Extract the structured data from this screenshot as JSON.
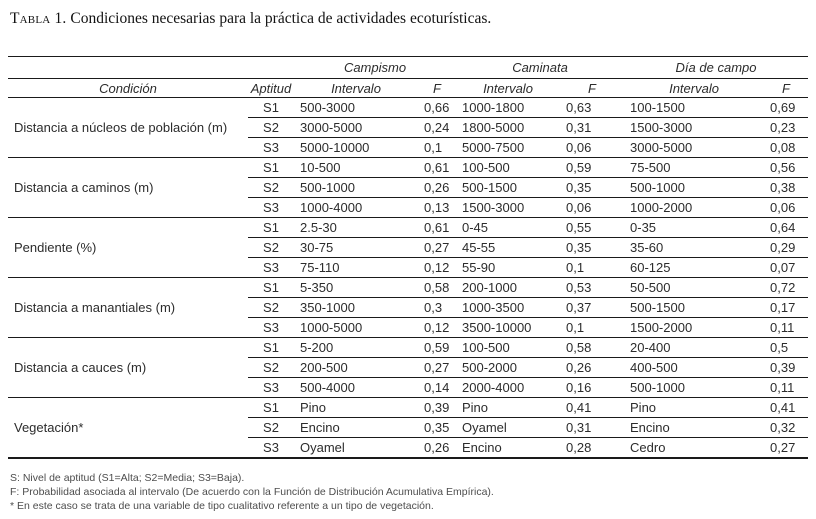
{
  "title": {
    "label": "Tabla 1.",
    "text": "Condiciones necesarias para la práctica de actividades ecoturísticas."
  },
  "table": {
    "activity_headers": [
      "Campismo",
      "Caminata",
      "Día de campo"
    ],
    "column_headers": {
      "condition": "Condición",
      "aptitude": "Aptitud",
      "interval": "Intervalo",
      "f": "F"
    },
    "conditions": [
      {
        "name": "Distancia a núcleos de población (m)",
        "rows": [
          {
            "aptitud": "S1",
            "campismo": {
              "intervalo": "500-3000",
              "f": "0,66"
            },
            "caminata": {
              "intervalo": "1000-1800",
              "f": "0,63"
            },
            "dia_de_campo": {
              "intervalo": "100-1500",
              "f": "0,69"
            }
          },
          {
            "aptitud": "S2",
            "campismo": {
              "intervalo": "3000-5000",
              "f": "0,24"
            },
            "caminata": {
              "intervalo": "1800-5000",
              "f": "0,31"
            },
            "dia_de_campo": {
              "intervalo": "1500-3000",
              "f": "0,23"
            }
          },
          {
            "aptitud": "S3",
            "campismo": {
              "intervalo": "5000-10000",
              "f": "0,1"
            },
            "caminata": {
              "intervalo": "5000-7500",
              "f": "0,06"
            },
            "dia_de_campo": {
              "intervalo": "3000-5000",
              "f": "0,08"
            }
          }
        ]
      },
      {
        "name": "Distancia a caminos (m)",
        "rows": [
          {
            "aptitud": "S1",
            "campismo": {
              "intervalo": "10-500",
              "f": "0,61"
            },
            "caminata": {
              "intervalo": "100-500",
              "f": "0,59"
            },
            "dia_de_campo": {
              "intervalo": "75-500",
              "f": "0,56"
            }
          },
          {
            "aptitud": "S2",
            "campismo": {
              "intervalo": "500-1000",
              "f": "0,26"
            },
            "caminata": {
              "intervalo": "500-1500",
              "f": "0,35"
            },
            "dia_de_campo": {
              "intervalo": "500-1000",
              "f": "0,38"
            }
          },
          {
            "aptitud": "S3",
            "campismo": {
              "intervalo": "1000-4000",
              "f": "0,13"
            },
            "caminata": {
              "intervalo": "1500-3000",
              "f": "0,06"
            },
            "dia_de_campo": {
              "intervalo": "1000-2000",
              "f": "0,06"
            }
          }
        ]
      },
      {
        "name": "Pendiente (%)",
        "rows": [
          {
            "aptitud": "S1",
            "campismo": {
              "intervalo": "2.5-30",
              "f": "0,61"
            },
            "caminata": {
              "intervalo": "0-45",
              "f": "0,55"
            },
            "dia_de_campo": {
              "intervalo": "0-35",
              "f": "0,64"
            }
          },
          {
            "aptitud": "S2",
            "campismo": {
              "intervalo": "30-75",
              "f": "0,27"
            },
            "caminata": {
              "intervalo": "45-55",
              "f": "0,35"
            },
            "dia_de_campo": {
              "intervalo": "35-60",
              "f": "0,29"
            }
          },
          {
            "aptitud": "S3",
            "campismo": {
              "intervalo": "75-110",
              "f": "0,12"
            },
            "caminata": {
              "intervalo": "55-90",
              "f": "0,1"
            },
            "dia_de_campo": {
              "intervalo": "60-125",
              "f": "0,07"
            }
          }
        ]
      },
      {
        "name": "Distancia a manantiales (m)",
        "rows": [
          {
            "aptitud": "S1",
            "campismo": {
              "intervalo": "5-350",
              "f": "0,58"
            },
            "caminata": {
              "intervalo": "200-1000",
              "f": "0,53"
            },
            "dia_de_campo": {
              "intervalo": "50-500",
              "f": "0,72"
            }
          },
          {
            "aptitud": "S2",
            "campismo": {
              "intervalo": "350-1000",
              "f": "0,3"
            },
            "caminata": {
              "intervalo": "1000-3500",
              "f": "0,37"
            },
            "dia_de_campo": {
              "intervalo": "500-1500",
              "f": "0,17"
            }
          },
          {
            "aptitud": "S3",
            "campismo": {
              "intervalo": "1000-5000",
              "f": "0,12"
            },
            "caminata": {
              "intervalo": "3500-10000",
              "f": "0,1"
            },
            "dia_de_campo": {
              "intervalo": "1500-2000",
              "f": "0,11"
            }
          }
        ]
      },
      {
        "name": "Distancia a cauces (m)",
        "rows": [
          {
            "aptitud": "S1",
            "campismo": {
              "intervalo": "5-200",
              "f": "0,59"
            },
            "caminata": {
              "intervalo": "100-500",
              "f": "0,58"
            },
            "dia_de_campo": {
              "intervalo": "20-400",
              "f": "0,5"
            }
          },
          {
            "aptitud": "S2",
            "campismo": {
              "intervalo": "200-500",
              "f": "0,27"
            },
            "caminata": {
              "intervalo": "500-2000",
              "f": "0,26"
            },
            "dia_de_campo": {
              "intervalo": "400-500",
              "f": "0,39"
            }
          },
          {
            "aptitud": "S3",
            "campismo": {
              "intervalo": "500-4000",
              "f": "0,14"
            },
            "caminata": {
              "intervalo": "2000-4000",
              "f": "0,16"
            },
            "dia_de_campo": {
              "intervalo": "500-1000",
              "f": "0,11"
            }
          }
        ]
      },
      {
        "name": "Vegetación*",
        "rows": [
          {
            "aptitud": "S1",
            "campismo": {
              "intervalo": "Pino",
              "f": "0,39"
            },
            "caminata": {
              "intervalo": "Pino",
              "f": "0,41"
            },
            "dia_de_campo": {
              "intervalo": "Pino",
              "f": "0,41"
            }
          },
          {
            "aptitud": "S2",
            "campismo": {
              "intervalo": "Encino",
              "f": "0,35"
            },
            "caminata": {
              "intervalo": "Oyamel",
              "f": "0,31"
            },
            "dia_de_campo": {
              "intervalo": "Encino",
              "f": "0,32"
            }
          },
          {
            "aptitud": "S3",
            "campismo": {
              "intervalo": "Oyamel",
              "f": "0,26"
            },
            "caminata": {
              "intervalo": "Encino",
              "f": "0,28"
            },
            "dia_de_campo": {
              "intervalo": "Cedro",
              "f": "0,27"
            }
          }
        ]
      }
    ],
    "footnotes": [
      "S: Nivel de aptitud (S1=Alta; S2=Media; S3=Baja).",
      "F: Probabilidad asociada al intervalo (De acuerdo con la Función de Distribución Acumulativa Empírica).",
      "* En este caso se trata de una variable de tipo cualitativo referente a un tipo de vegetación."
    ]
  }
}
